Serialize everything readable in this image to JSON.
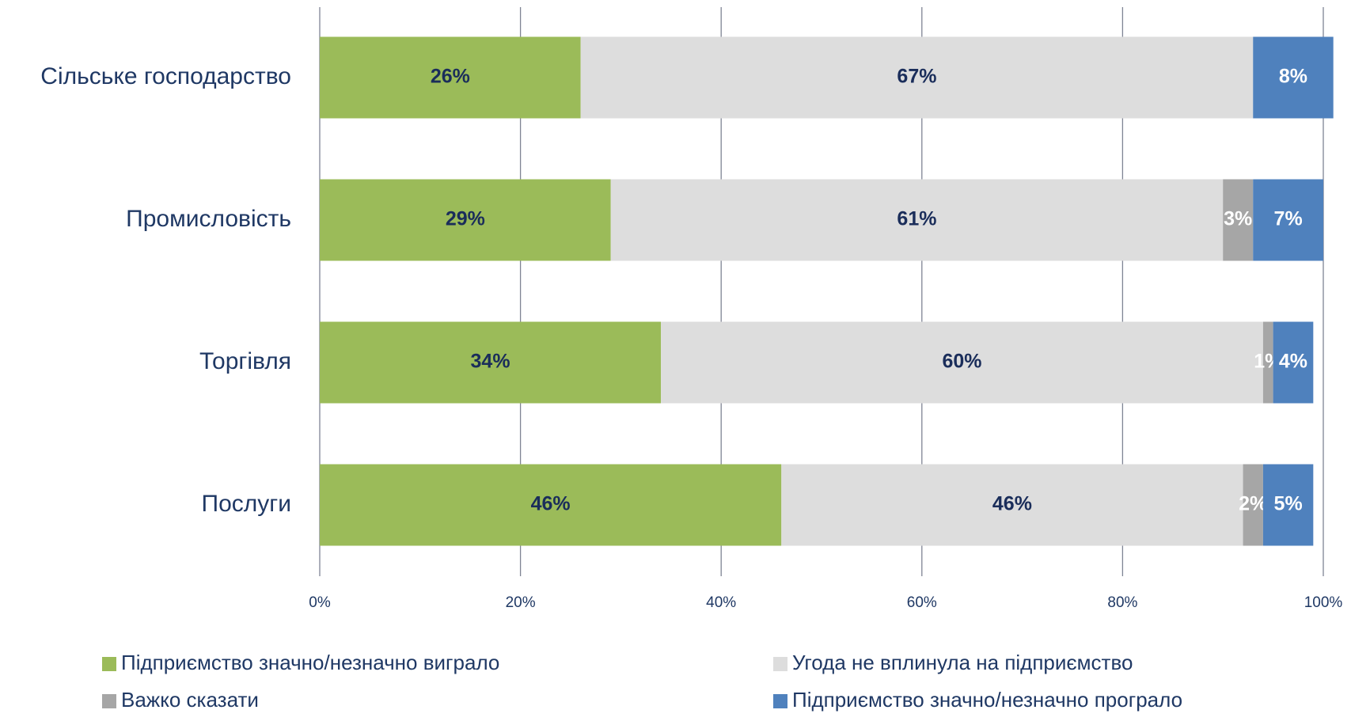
{
  "chart_data": {
    "type": "stacked_bar_horizontal",
    "categories": [
      "Сільське господарство",
      "Промисловість",
      "Торгівля",
      "Послуги"
    ],
    "series": [
      {
        "name": "Підприємство значно/незначно виграло",
        "color": "#9bbb59",
        "label_color": "#1a2d5a",
        "values": [
          26,
          29,
          34,
          46
        ],
        "value_labels": [
          "26%",
          "29%",
          "34%",
          "46%"
        ]
      },
      {
        "name": "Угода не вплинула на підприємство",
        "color": "#dddddd",
        "label_color": "#1a2d5a",
        "values": [
          67,
          61,
          60,
          46
        ],
        "value_labels": [
          "67%",
          "61%",
          "60%",
          "46%"
        ]
      },
      {
        "name": "Важко сказати",
        "color": "#a6a6a6",
        "label_color": "#ffffff",
        "values": [
          null,
          3,
          1,
          2
        ],
        "value_labels": [
          null,
          "3%",
          "1%",
          "2%"
        ]
      },
      {
        "name": "Підприємство значно/незначно програло",
        "color": "#4f81bd",
        "label_color": "#ffffff",
        "values": [
          8,
          7,
          4,
          5
        ],
        "value_labels": [
          "8%",
          "7%",
          "4%",
          "5%"
        ]
      }
    ],
    "xlim": [
      0,
      100
    ],
    "xticks": [
      {
        "value": 0,
        "label": "0%"
      },
      {
        "value": 20,
        "label": "20%"
      },
      {
        "value": 40,
        "label": "40%"
      },
      {
        "value": 60,
        "label": "60%"
      },
      {
        "value": 80,
        "label": "80%"
      },
      {
        "value": 100,
        "label": "100%"
      }
    ],
    "grid": true
  }
}
